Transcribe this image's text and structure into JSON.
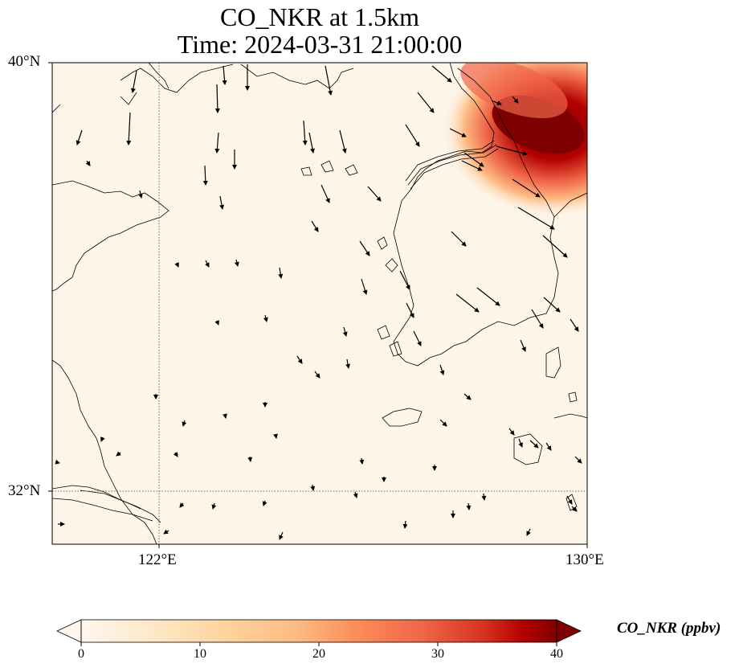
{
  "title": {
    "line1": "CO_NKR at 1.5km",
    "line2": "Time: 2024-03-31 21:00:00"
  },
  "axes": {
    "lat_ticks": [
      "40°N",
      "32°N"
    ],
    "lon_ticks": [
      "122°E",
      "130°E"
    ]
  },
  "colorbar": {
    "label": "CO_NKR (ppbv)",
    "ticks": [
      "0",
      "10",
      "20",
      "30",
      "40"
    ],
    "colormap": "OrRd",
    "range": [
      0,
      40
    ],
    "extend": "both"
  },
  "map": {
    "projection": "PlateCarree",
    "lon_range": [
      120,
      130
    ],
    "lat_range": [
      31,
      40
    ],
    "gridlines": "dotted at 122°E and 32°N",
    "wind_vectors": true,
    "features": [
      "coastlines"
    ]
  },
  "colors": {
    "low": "#fff7ec",
    "mid": "#fdbb84",
    "high": "#7f0000"
  }
}
